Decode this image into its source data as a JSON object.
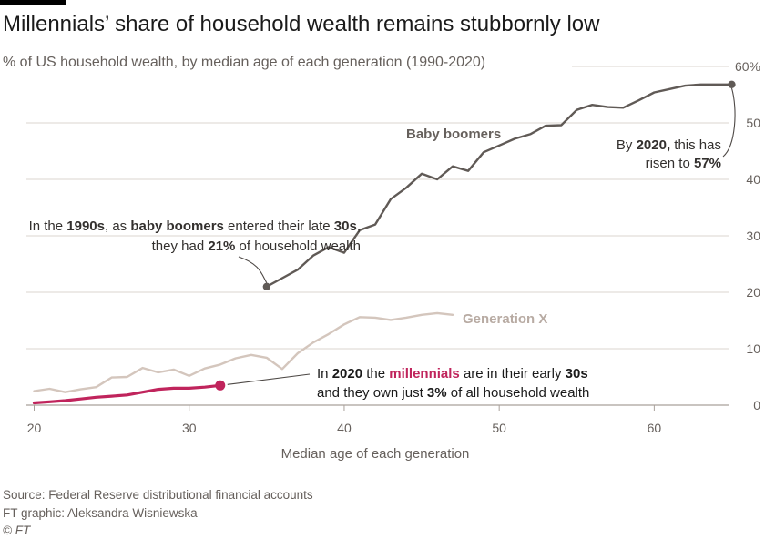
{
  "title": "Millennials’ share of household wealth remains stubbornly low",
  "subtitle": "% of US household wealth, by median age of each generation (1990-2020)",
  "footer": {
    "source": "Source: Federal Reserve distributional financial accounts",
    "credit": "FT graphic: Aleksandra Wisniewska",
    "copyright": "© FT"
  },
  "chart_data": {
    "type": "line",
    "title": "Millennials’ share of household wealth remains stubbornly low",
    "xlabel": "Median age of each generation",
    "ylabel": "% of US household wealth",
    "xlim": [
      19.5,
      65.5
    ],
    "ylim": [
      0,
      60
    ],
    "x_ticks": [
      20,
      30,
      40,
      50,
      60
    ],
    "y_ticks": [
      0,
      10,
      20,
      30,
      40,
      50,
      60
    ],
    "y_tick_labels": [
      "0",
      "10",
      "20",
      "30",
      "40",
      "50",
      "60%"
    ],
    "grid": true,
    "colors": {
      "boomers": "#605a56",
      "genx": "#d4c6bd",
      "millennials": "#c0245c",
      "grid": "#dbd5cf",
      "axis_text": "#66605c"
    },
    "series": [
      {
        "name": "Baby boomers",
        "key": "boomers",
        "x": [
          35,
          36,
          37,
          38,
          39,
          40,
          41,
          42,
          43,
          44,
          45,
          46,
          47,
          48,
          49,
          50,
          51,
          52,
          53,
          54,
          55,
          56,
          57,
          58,
          59,
          60,
          61,
          62,
          63,
          64,
          65
        ],
        "values": [
          21,
          22.5,
          24,
          26.5,
          28,
          27,
          31,
          32,
          36.5,
          38.5,
          41,
          40,
          42.3,
          41.5,
          44.8,
          46,
          47.2,
          48,
          49.5,
          49.6,
          52.3,
          53.2,
          52.8,
          52.7,
          54,
          55.4,
          56,
          56.6,
          56.8,
          56.8,
          56.8
        ]
      },
      {
        "name": "Generation X",
        "key": "genx",
        "x": [
          20,
          21,
          22,
          23,
          24,
          25,
          26,
          27,
          28,
          29,
          30,
          31,
          32,
          33,
          34,
          35,
          36,
          37,
          38,
          39,
          40,
          41,
          42,
          43,
          44,
          45,
          46,
          47
        ],
        "values": [
          2.5,
          2.9,
          2.3,
          2.8,
          3.2,
          4.9,
          5,
          6.6,
          5.8,
          6.3,
          5.2,
          6.5,
          7.2,
          8.3,
          8.9,
          8.4,
          6.4,
          9.2,
          11.1,
          12.6,
          14.3,
          15.6,
          15.5,
          15.1,
          15.5,
          16,
          16.3,
          16
        ]
      },
      {
        "name": "Millennials",
        "key": "millennials",
        "x": [
          20,
          21,
          22,
          23,
          24,
          25,
          26,
          27,
          28,
          29,
          30,
          31,
          32
        ],
        "values": [
          0.4,
          0.6,
          0.8,
          1.1,
          1.4,
          1.6,
          1.8,
          2.3,
          2.8,
          3,
          3,
          3.2,
          3.5
        ]
      }
    ],
    "labels": {
      "boomers": "Baby boomers",
      "genx": "Generation X"
    },
    "annotations": {
      "boomers_1990s_line1": [
        "In the ",
        "1990s",
        ", as ",
        "baby boomers",
        " entered their late ",
        "30s",
        ","
      ],
      "boomers_1990s_line2": [
        "they had ",
        "21%",
        " of household wealth"
      ],
      "boomers_2020_line1": [
        "By ",
        "2020,",
        " this has"
      ],
      "boomers_2020_line2": [
        "risen to ",
        "57%"
      ],
      "millennials_line1": [
        "In ",
        "2020",
        " the ",
        "millennials",
        " are in their early ",
        "30s"
      ],
      "millennials_line2": [
        "and they own just ",
        "3%",
        " of all household wealth"
      ]
    }
  }
}
